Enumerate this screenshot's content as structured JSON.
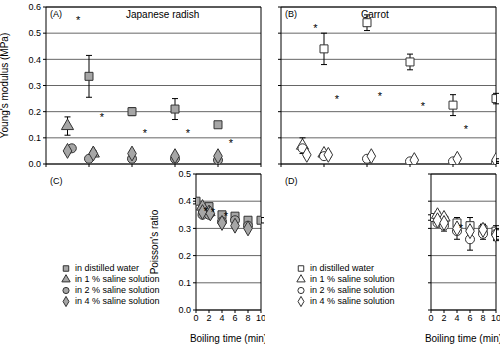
{
  "chart_data": [
    {
      "type": "scatter",
      "title": "(A)",
      "subtitle": "Japanese radish",
      "ylabel": "Young's modulus (MPa)",
      "grid": true,
      "tick_labels": "y",
      "xlim": [
        0,
        10
      ],
      "xticks": [
        0,
        2,
        4,
        6,
        8,
        10
      ],
      "ylim": [
        0,
        0.6
      ],
      "yticks": [
        {
          "value": 0,
          "label": "0.0"
        },
        {
          "value": 0.1,
          "label": "0.1"
        },
        {
          "value": 0.2,
          "label": "0.2"
        },
        {
          "value": 0.3,
          "label": "0.3"
        },
        {
          "value": 0.4,
          "label": "0.4"
        },
        {
          "value": 0.5,
          "label": "0.5"
        },
        {
          "value": 0.6,
          "label": "0.6"
        }
      ],
      "series": [
        {
          "name": "in distilled water",
          "color": "#a6a6a6",
          "marker": "square",
          "x": [
            2.0,
            4.0,
            6.0,
            8.0
          ],
          "values": [
            0.335,
            0.2,
            0.21,
            0.15
          ],
          "errors": [
            0.08,
            0.015,
            0.04,
            0.01
          ]
        },
        {
          "name": "in 1 % saline solution",
          "color": "#a6a6a6",
          "marker": "triangle",
          "x": [
            1.0,
            2.2
          ],
          "values": [
            0.145,
            0.04
          ],
          "errors": [
            0.035,
            0.01
          ]
        },
        {
          "name": "in 2 % saline solution",
          "color": "#a6a6a6",
          "marker": "circle",
          "x": [
            1.2,
            2.0,
            4.0,
            6.0,
            8.0
          ],
          "values": [
            0.06,
            0.02,
            0.02,
            0.02,
            0.015
          ],
          "errors": [
            0.01,
            0.005,
            0.005,
            0.005,
            0.005
          ]
        },
        {
          "name": "in 4 % saline solution",
          "color": "#a6a6a6",
          "marker": "diamond",
          "x": [
            1.0,
            2.2,
            4.0,
            6.0,
            8.0
          ],
          "values": [
            0.05,
            0.04,
            0.04,
            0.03,
            0.03
          ],
          "errors": [
            0.01,
            0.01,
            0.01,
            0.005,
            0.005
          ]
        }
      ],
      "annotations": [
        {
          "text": "*",
          "x": 1.5,
          "y": 0.55
        },
        {
          "text": "*",
          "x": 2.6,
          "y": 0.18
        },
        {
          "text": "*",
          "x": 4.6,
          "y": 0.12
        },
        {
          "text": "*",
          "x": 6.6,
          "y": 0.12
        },
        {
          "text": "*",
          "x": 8.6,
          "y": 0.08
        }
      ]
    },
    {
      "type": "scatter",
      "title": "(B)",
      "subtitle": "Carrot",
      "grid": true,
      "tick_labels": false,
      "xlim": [
        0,
        10
      ],
      "xticks": [
        0,
        2,
        4,
        6,
        8,
        10
      ],
      "ylim": [
        0,
        0.6
      ],
      "yticks": [
        0,
        0.1,
        0.2,
        0.3,
        0.4,
        0.5,
        0.6
      ],
      "series": [
        {
          "name": "in distilled water",
          "color": "#ffffff",
          "marker": "square",
          "x": [
            2.0,
            4.0,
            6.0,
            8.0,
            10.0
          ],
          "values": [
            0.44,
            0.54,
            0.39,
            0.225,
            0.25
          ],
          "errors": [
            0.06,
            0.03,
            0.03,
            0.04,
            0.02
          ]
        },
        {
          "name": "in 1 % saline solution",
          "color": "#ffffff",
          "marker": "triangle",
          "x": [
            1.0,
            2.0
          ],
          "values": [
            0.07,
            0.04
          ],
          "errors": [
            0.03,
            0.01
          ]
        },
        {
          "name": "in 2 % saline solution",
          "color": "#ffffff",
          "marker": "circle",
          "x": [
            1.0,
            2.0,
            4.0,
            6.0,
            8.0,
            10.0
          ],
          "values": [
            0.06,
            0.03,
            0.02,
            0.01,
            0.01,
            0.005
          ],
          "errors": [
            0.01,
            0.005,
            0.005,
            0.003,
            0.003,
            0.003
          ]
        },
        {
          "name": "in 4 % saline solution",
          "color": "#ffffff",
          "marker": "diamond",
          "x": [
            1.2,
            2.2,
            4.2,
            6.2,
            8.2,
            10.0
          ],
          "values": [
            0.035,
            0.035,
            0.03,
            0.015,
            0.02,
            0.015
          ],
          "errors": [
            0.01,
            0.01,
            0.005,
            0.003,
            0.005,
            0.005
          ]
        }
      ],
      "annotations": [
        {
          "text": "*",
          "x": 1.6,
          "y": 0.52
        },
        {
          "text": "*",
          "x": 2.6,
          "y": 0.25
        },
        {
          "text": "*",
          "x": 4.6,
          "y": 0.26
        },
        {
          "text": "*",
          "x": 6.6,
          "y": 0.22
        },
        {
          "text": "*",
          "x": 8.6,
          "y": 0.135
        }
      ]
    },
    {
      "type": "scatter",
      "title": "(C)",
      "ylabel": "Poisson's ratio",
      "xlabel": "Boiling time (min)",
      "grid": true,
      "tick_labels": true,
      "legend": "lower left",
      "xlim": [
        0,
        10
      ],
      "xticks": [
        0,
        2,
        4,
        6,
        8,
        10
      ],
      "ylim": [
        0,
        0.5
      ],
      "yticks": [
        {
          "value": 0,
          "label": "0.0"
        },
        {
          "value": 0.1,
          "label": "0.1"
        },
        {
          "value": 0.2,
          "label": "0.2"
        },
        {
          "value": 0.3,
          "label": "0.3"
        },
        {
          "value": 0.4,
          "label": "0.4"
        },
        {
          "value": 0.5,
          "label": "0.5"
        }
      ],
      "series": [
        {
          "name": "in distilled water",
          "color": "#a6a6a6",
          "marker": "square",
          "x": [
            0,
            2.0,
            4.0,
            6.0,
            8.0,
            10.0
          ],
          "values": [
            0.4,
            0.38,
            0.35,
            0.345,
            0.33,
            0.33
          ],
          "errors": [
            0.01,
            0.01,
            0.01,
            0.01,
            0.01,
            0.01
          ]
        },
        {
          "name": "in 1 % saline solution",
          "color": "#a6a6a6",
          "marker": "triangle",
          "x": [
            1.0,
            2.0
          ],
          "values": [
            0.38,
            0.36
          ],
          "errors": [
            0.01,
            0.01
          ]
        },
        {
          "name": "in 2 % saline solution",
          "color": "#a6a6a6",
          "marker": "circle",
          "x": [
            1.0,
            2.0,
            4.0,
            6.0,
            8.0
          ],
          "values": [
            0.35,
            0.35,
            0.325,
            0.33,
            0.31
          ],
          "errors": [
            0.01,
            0.01,
            0.01,
            0.01,
            0.01
          ]
        },
        {
          "name": "in 4 % saline solution",
          "color": "#a6a6a6",
          "marker": "diamond",
          "x": [
            1.0,
            2.2,
            4.0,
            6.0,
            8.0
          ],
          "values": [
            0.36,
            0.355,
            0.32,
            0.31,
            0.3
          ],
          "errors": [
            0.01,
            0.01,
            0.01,
            0.01,
            0.01
          ]
        }
      ],
      "annotations": [
        {
          "text": "*",
          "x": 1.5,
          "y": 0.365
        },
        {
          "text": "*",
          "x": 2.6,
          "y": 0.36
        },
        {
          "text": "*",
          "x": 4.6,
          "y": 0.345
        }
      ]
    },
    {
      "type": "scatter",
      "title": "(D)",
      "xlabel": "Boiling time (min)",
      "grid": true,
      "tick_labels": "x",
      "legend": "lower left",
      "xlim": [
        0,
        10
      ],
      "xticks": [
        0,
        2,
        4,
        6,
        8,
        10
      ],
      "ylim": [
        0,
        0.5
      ],
      "yticks": [
        0,
        0.1,
        0.2,
        0.3,
        0.4,
        0.5
      ],
      "series": [
        {
          "name": "in distilled water",
          "color": "#ffffff",
          "marker": "square",
          "x": [
            0,
            2.0,
            4.0,
            6.0,
            8.0,
            10.0
          ],
          "values": [
            0.34,
            0.33,
            0.32,
            0.31,
            0.295,
            0.29
          ],
          "errors": [
            0.01,
            0.01,
            0.02,
            0.03,
            0.02,
            0.02
          ]
        },
        {
          "name": "in 1 % saline solution",
          "color": "#ffffff",
          "marker": "triangle",
          "x": [
            1.0,
            2.0
          ],
          "values": [
            0.35,
            0.34
          ],
          "errors": [
            0.01,
            0.01
          ]
        },
        {
          "name": "in 2 % saline solution",
          "color": "#ffffff",
          "marker": "circle",
          "x": [
            1.0,
            2.0,
            4.0,
            6.0,
            8.0,
            10.0
          ],
          "values": [
            0.32,
            0.31,
            0.29,
            0.26,
            0.28,
            0.28
          ],
          "errors": [
            0.01,
            0.02,
            0.03,
            0.04,
            0.02,
            0.02
          ]
        },
        {
          "name": "in 4 % saline solution",
          "color": "#ffffff",
          "marker": "diamond",
          "x": [
            1.0,
            2.0,
            4.0,
            6.0,
            8.0,
            10.0
          ],
          "values": [
            0.33,
            0.32,
            0.3,
            0.29,
            0.295,
            0.275
          ],
          "errors": [
            0.01,
            0.01,
            0.02,
            0.03,
            0.02,
            0.02
          ]
        }
      ],
      "annotations": [
        {
          "text": "*",
          "x": 4.6,
          "y": 0.3
        }
      ]
    }
  ]
}
